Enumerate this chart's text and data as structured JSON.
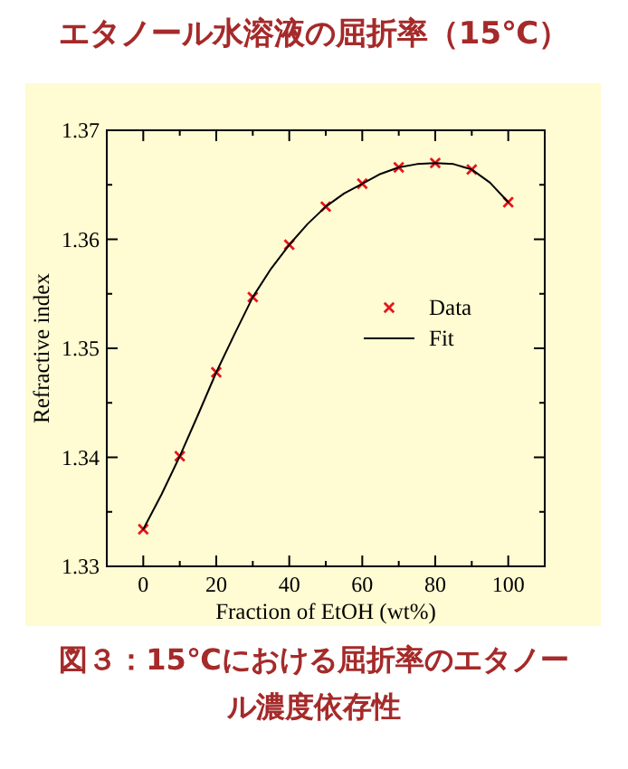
{
  "chart_data": {
    "type": "line",
    "title": "エタノール水溶液の屈折率（15℃）",
    "xlabel": "Fraction of EtOH (wt%)",
    "ylabel": "Refractive index",
    "annotations": [
      "図３：15℃における屈折率のエタノール濃度依存性"
    ],
    "series": [
      {
        "name": "Data",
        "type": "scatter",
        "marker": "cross",
        "color": "#e8141c",
        "x": [
          0,
          10,
          20,
          30,
          40,
          50,
          60,
          70,
          80,
          90,
          100
        ],
        "values": [
          1.3334,
          1.3401,
          1.3478,
          1.3547,
          1.3595,
          1.363,
          1.3651,
          1.3666,
          1.367,
          1.3664,
          1.3634
        ]
      },
      {
        "name": "Fit",
        "type": "line",
        "marker": "none",
        "line_style": "solid",
        "color": "#000000",
        "x": [
          0,
          5,
          10,
          15,
          20,
          25,
          30,
          35,
          40,
          45,
          50,
          55,
          60,
          65,
          70,
          75,
          80,
          85,
          90,
          95,
          100
        ],
        "values": [
          1.3334,
          1.3366,
          1.3401,
          1.3439,
          1.3478,
          1.3513,
          1.3547,
          1.3573,
          1.3595,
          1.3614,
          1.363,
          1.3642,
          1.3651,
          1.366,
          1.3666,
          1.3669,
          1.367,
          1.3669,
          1.3664,
          1.3652,
          1.3634
        ]
      }
    ],
    "xlim": [
      -10,
      110
    ],
    "ylim": [
      1.33,
      1.37
    ],
    "xticks": [
      0,
      {
        "value": 10,
        "label": null
      },
      20,
      {
        "value": 30,
        "label": null
      },
      40,
      {
        "value": 50,
        "label": null
      },
      60,
      {
        "value": 70,
        "label": null
      },
      80,
      {
        "value": 90,
        "label": null
      },
      100
    ],
    "yticks": [
      1.33,
      {
        "value": 1.335,
        "label": null
      },
      1.34,
      {
        "value": 1.345,
        "label": null
      },
      1.35,
      {
        "value": 1.355,
        "label": null
      },
      1.36,
      {
        "value": 1.365,
        "label": null
      },
      1.37
    ],
    "grid": false,
    "legend": "right"
  }
}
